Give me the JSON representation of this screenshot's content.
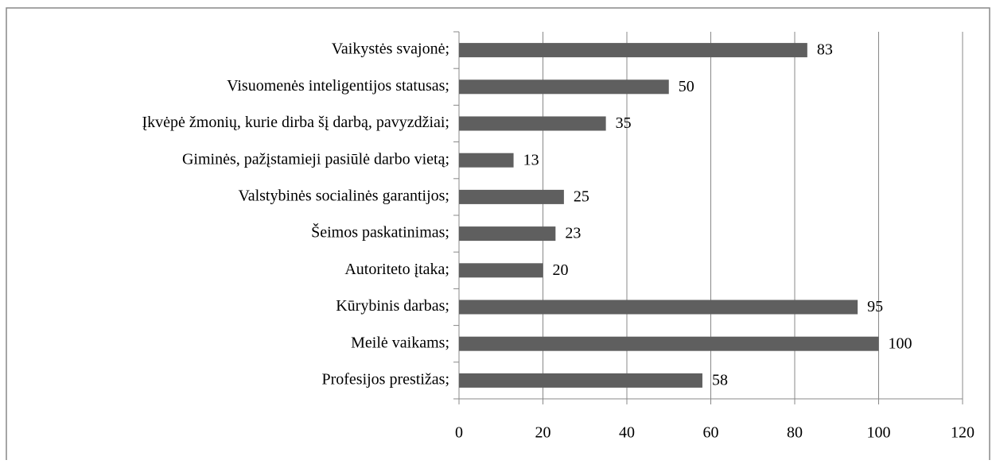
{
  "chart_data": {
    "type": "barh",
    "categories": [
      "Vaikystės svajonė;",
      "Visuomenės inteligentijos statusas;",
      "Įkvėpė žmonių, kurie dirba šį darbą, pavyzdžiai;",
      "Giminės, pažįstamieji pasiūlė darbo vietą;",
      "Valstybinės socialinės garantijos;",
      "Šeimos paskatinimas;",
      "Autoriteto įtaka;",
      "Kūrybinis darbas;",
      "Meilė vaikams;",
      "Profesijos prestižas;"
    ],
    "values": [
      83,
      50,
      35,
      13,
      25,
      23,
      20,
      95,
      100,
      58
    ],
    "color": "#5f5f5f",
    "xlim": [
      0,
      120
    ],
    "xticks": [
      0,
      20,
      40,
      60,
      80,
      100,
      120
    ],
    "grid": true
  }
}
